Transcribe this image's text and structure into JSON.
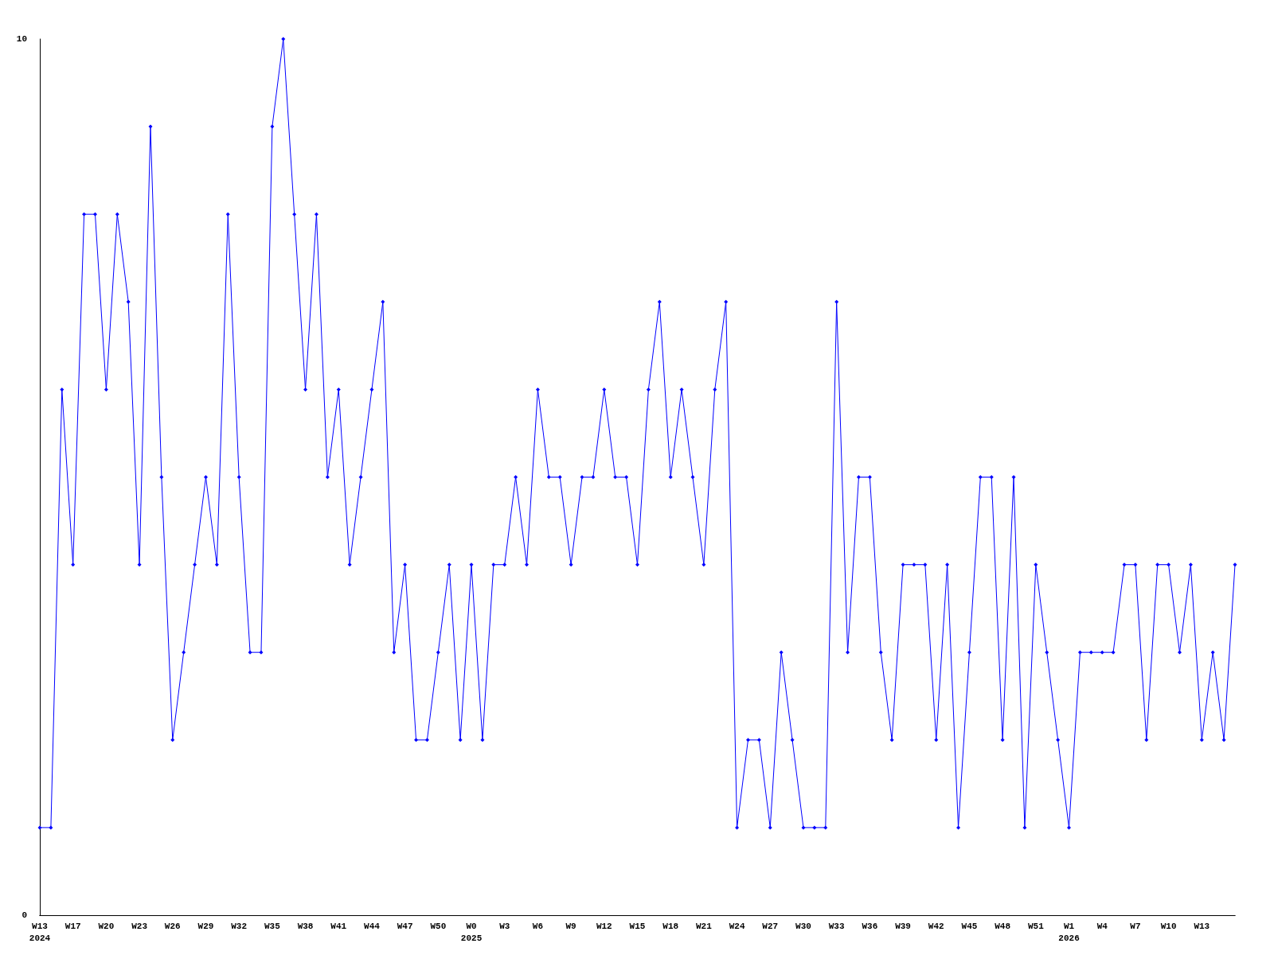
{
  "chart_data": {
    "type": "line",
    "categories": [
      "W13\n2024",
      null,
      null,
      "W17",
      null,
      null,
      "W20",
      null,
      null,
      "W23",
      null,
      null,
      "W26",
      null,
      null,
      "W29",
      null,
      null,
      "W32",
      null,
      null,
      "W35",
      null,
      null,
      "W38",
      null,
      null,
      "W41",
      null,
      null,
      "W44",
      null,
      null,
      "W47",
      null,
      null,
      "W50",
      null,
      null,
      "W0\n2025",
      null,
      null,
      "W3",
      null,
      null,
      "W6",
      null,
      null,
      "W9",
      null,
      null,
      "W12",
      null,
      null,
      "W15",
      null,
      null,
      "W18",
      null,
      null,
      "W21",
      null,
      null,
      "W24",
      null,
      null,
      "W27",
      null,
      null,
      "W30",
      null,
      null,
      "W33",
      null,
      null,
      "W36",
      null,
      null,
      "W39",
      null,
      null,
      "W42",
      null,
      null,
      "W45",
      null,
      null,
      "W48",
      null,
      null,
      "W51",
      null,
      null,
      "W1\n2026",
      null,
      null,
      "W4",
      null,
      null,
      "W7",
      null,
      null,
      "W10",
      null,
      null,
      "W13",
      null,
      null,
      null
    ],
    "series": [
      {
        "color": "#0000ff",
        "values": [
          1,
          1,
          6,
          4,
          8,
          8,
          6,
          8,
          7,
          4,
          9,
          5,
          2,
          3,
          4,
          5,
          4,
          8,
          5,
          3,
          3,
          9,
          10,
          8,
          6,
          8,
          5,
          6,
          4,
          5,
          6,
          7,
          3,
          4,
          2,
          2,
          3,
          4,
          2,
          4,
          2,
          4,
          4,
          5,
          4,
          6,
          5,
          5,
          4,
          5,
          5,
          6,
          5,
          5,
          4,
          6,
          7,
          5,
          6,
          5,
          4,
          6,
          7,
          1,
          2,
          2,
          1,
          3,
          2,
          1,
          1,
          1,
          7,
          3,
          5,
          5,
          3,
          2,
          4,
          4,
          4,
          2,
          4,
          1,
          3,
          5,
          5,
          2,
          5,
          1,
          4,
          3,
          2,
          1,
          3,
          3,
          3,
          3,
          4,
          4,
          2,
          4,
          4,
          3,
          4,
          2,
          3,
          2,
          4
        ]
      }
    ],
    "ylim": [
      0,
      10
    ],
    "yticks": [
      0,
      10
    ],
    "marker": "diamond",
    "line_style": "solid"
  }
}
